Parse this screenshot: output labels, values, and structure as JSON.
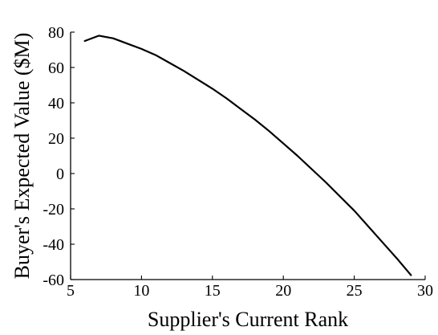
{
  "chart_data": {
    "type": "line",
    "title": "",
    "xlabel": "Supplier's Current Rank",
    "ylabel": "Buyer's Expected Value ($M)",
    "xlim": [
      5,
      30
    ],
    "ylim": [
      -60,
      80
    ],
    "xticks": [
      5,
      10,
      15,
      20,
      25,
      30
    ],
    "yticks": [
      -60,
      -40,
      -20,
      0,
      20,
      40,
      60,
      80
    ],
    "grid": false,
    "legend": "none",
    "series": [
      {
        "color": "#000000",
        "x": [
          6,
          7,
          8,
          9,
          10,
          11,
          12,
          13,
          14,
          15,
          16,
          17,
          18,
          19,
          20,
          21,
          22,
          23,
          24,
          25,
          26,
          27,
          28,
          29
        ],
        "y": [
          75,
          78,
          76.5,
          73.5,
          70.5,
          67,
          62.5,
          58,
          53,
          48,
          42.5,
          36.5,
          30.5,
          24,
          17,
          10,
          2.5,
          -5,
          -13,
          -21,
          -30,
          -39,
          -48,
          -57.5
        ]
      }
    ]
  }
}
